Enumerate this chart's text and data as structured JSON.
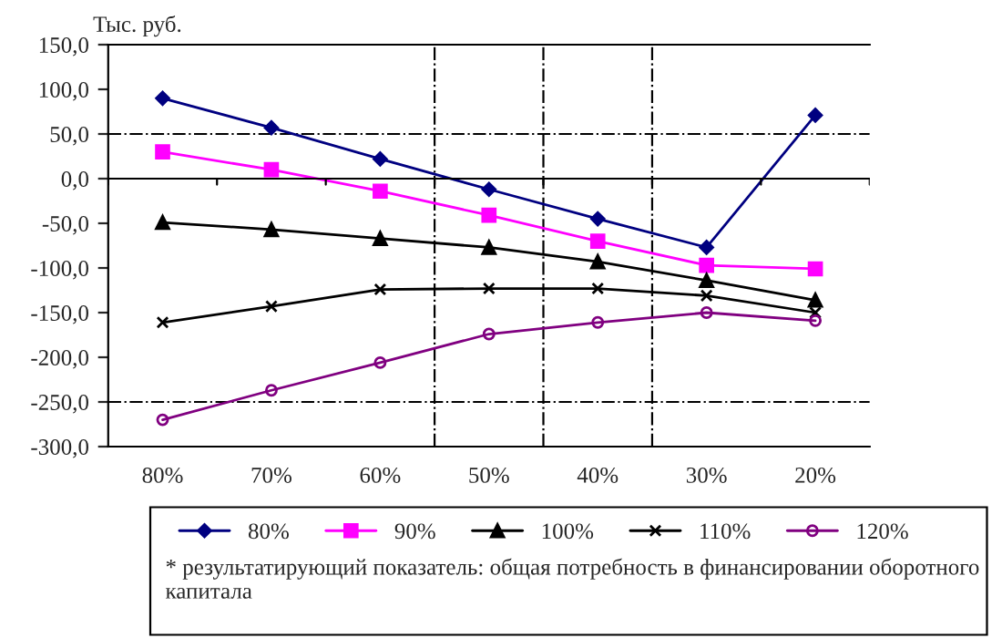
{
  "chart_data": {
    "type": "line",
    "ylabel": "Тыс. руб.",
    "categories": [
      "80%",
      "70%",
      "60%",
      "50%",
      "40%",
      "30%",
      "20%"
    ],
    "series": [
      {
        "name": "80%",
        "color": "#000080",
        "marker": "diamond",
        "values": [
          90,
          57,
          22,
          -12,
          -45,
          -77,
          71
        ]
      },
      {
        "name": "90%",
        "color": "#ff00ff",
        "marker": "square",
        "values": [
          30,
          10,
          -14,
          -41,
          -70,
          -97,
          -101
        ]
      },
      {
        "name": "100%",
        "color": "#000000",
        "marker": "triangle",
        "values": [
          -49,
          -57,
          -67,
          -77,
          -93,
          -114,
          -136
        ]
      },
      {
        "name": "110%",
        "color": "#000000",
        "marker": "cross",
        "values": [
          -161,
          -143,
          -124,
          -123,
          -123,
          -131,
          -150
        ]
      },
      {
        "name": "120%",
        "color": "#800080",
        "marker": "circle",
        "values": [
          -270,
          -237,
          -206,
          -174,
          -161,
          -150,
          -159
        ]
      }
    ],
    "ylim": [
      -300,
      150
    ],
    "yticks": [
      {
        "value": 150,
        "label": "150,0"
      },
      {
        "value": 100,
        "label": "100,0"
      },
      {
        "value": 50,
        "label": "50,0"
      },
      {
        "value": 0,
        "label": "0,0"
      },
      {
        "value": -50,
        "label": "-50,0"
      },
      {
        "value": -100,
        "label": "-100,0"
      },
      {
        "value": -150,
        "label": "-150,0"
      },
      {
        "value": -200,
        "label": "-200,0"
      },
      {
        "value": -250,
        "label": "-250,0"
      },
      {
        "value": -300,
        "label": "-300,0"
      }
    ],
    "ref_lines": [
      {
        "axis": "y",
        "value": 50,
        "line_style": "dashdot"
      },
      {
        "axis": "y",
        "value": -250,
        "line_style": "dashdot"
      }
    ],
    "legend": "bottom",
    "grid": false,
    "annotations": [
      "* результатирующий показатель: общая потребность в финансировании оборотного капитала"
    ]
  }
}
